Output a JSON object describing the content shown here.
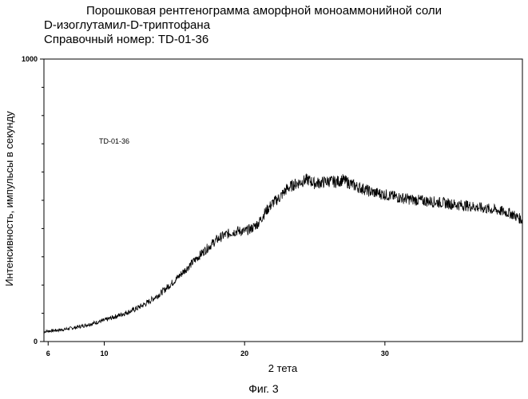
{
  "title": {
    "line1": "Порошковая рентгенограмма аморфной моноаммонийной соли",
    "line2": "D-изоглутамил-D-триптофана",
    "line3": "Справочный номер: TD-01-36"
  },
  "figure_caption": "Фиг. 3",
  "chart_data": {
    "type": "line",
    "title": "Порошковая рентгенограмма аморфной моноаммонийной соли D-изоглутамил-D-триптофана",
    "xlabel": "2 тета",
    "ylabel": "Интенсивность, импульсы в секунду",
    "xlim": [
      5.7,
      39.8
    ],
    "ylim": [
      0,
      1000
    ],
    "x_ticks": [
      6,
      10,
      20,
      30
    ],
    "x_tick_labels": [
      "6",
      "10",
      "20",
      "30"
    ],
    "y_ticks": [
      0,
      1000
    ],
    "y_tick_labels": [
      "0",
      "1000"
    ],
    "y_minor_ticks": [
      100,
      200,
      300,
      400,
      500,
      600,
      700,
      800,
      900
    ],
    "annotation": "TD-01-36",
    "grid": false,
    "legend": "none",
    "series": [
      {
        "x": [
          5.7,
          6,
          7,
          8,
          9,
          10,
          11,
          12,
          13,
          14,
          15,
          16,
          17,
          18,
          18.5,
          19,
          19.5,
          20,
          20.5,
          21,
          21.5,
          22,
          22.5,
          23,
          23.5,
          24,
          24.5,
          25,
          25.5,
          26,
          26.5,
          27,
          27.5,
          28,
          28.5,
          29,
          30,
          31,
          32,
          33,
          34,
          35,
          36,
          37,
          38,
          39,
          39.8
        ],
        "y": [
          35,
          37,
          42,
          50,
          62,
          75,
          92,
          110,
          135,
          170,
          215,
          265,
          315,
          360,
          375,
          385,
          392,
          390,
          400,
          420,
          460,
          490,
          510,
          540,
          555,
          565,
          573,
          560,
          563,
          568,
          565,
          572,
          560,
          548,
          540,
          530,
          520,
          510,
          502,
          497,
          492,
          485,
          480,
          472,
          465,
          453,
          430
        ]
      }
    ],
    "line_color": "#000000"
  }
}
